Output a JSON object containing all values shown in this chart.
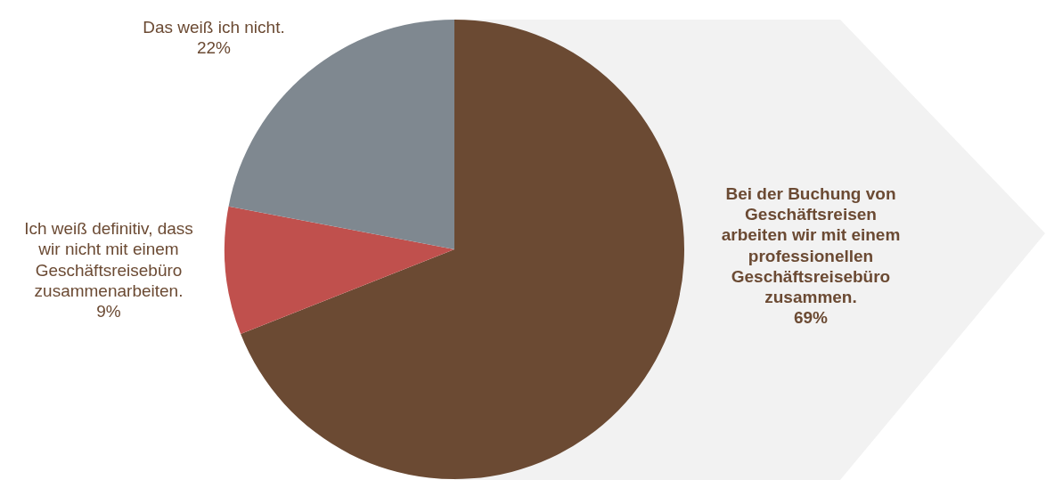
{
  "chart_data": {
    "type": "pie",
    "categories": [
      "Bei der Buchung von Geschäftsreisen arbeiten wir mit einem professionellen Geschäftsreisebüro zusammen.",
      "Ich weiß definitiv, dass wir nicht mit einem Geschäftsreisebüro zusammenarbeiten.",
      "Das weiß ich nicht."
    ],
    "values": [
      69,
      9,
      22
    ],
    "colors": [
      "#6b4a33",
      "#c0504d",
      "#7f8890"
    ],
    "value_labels": [
      "69%",
      "9%",
      "22%"
    ]
  }
}
